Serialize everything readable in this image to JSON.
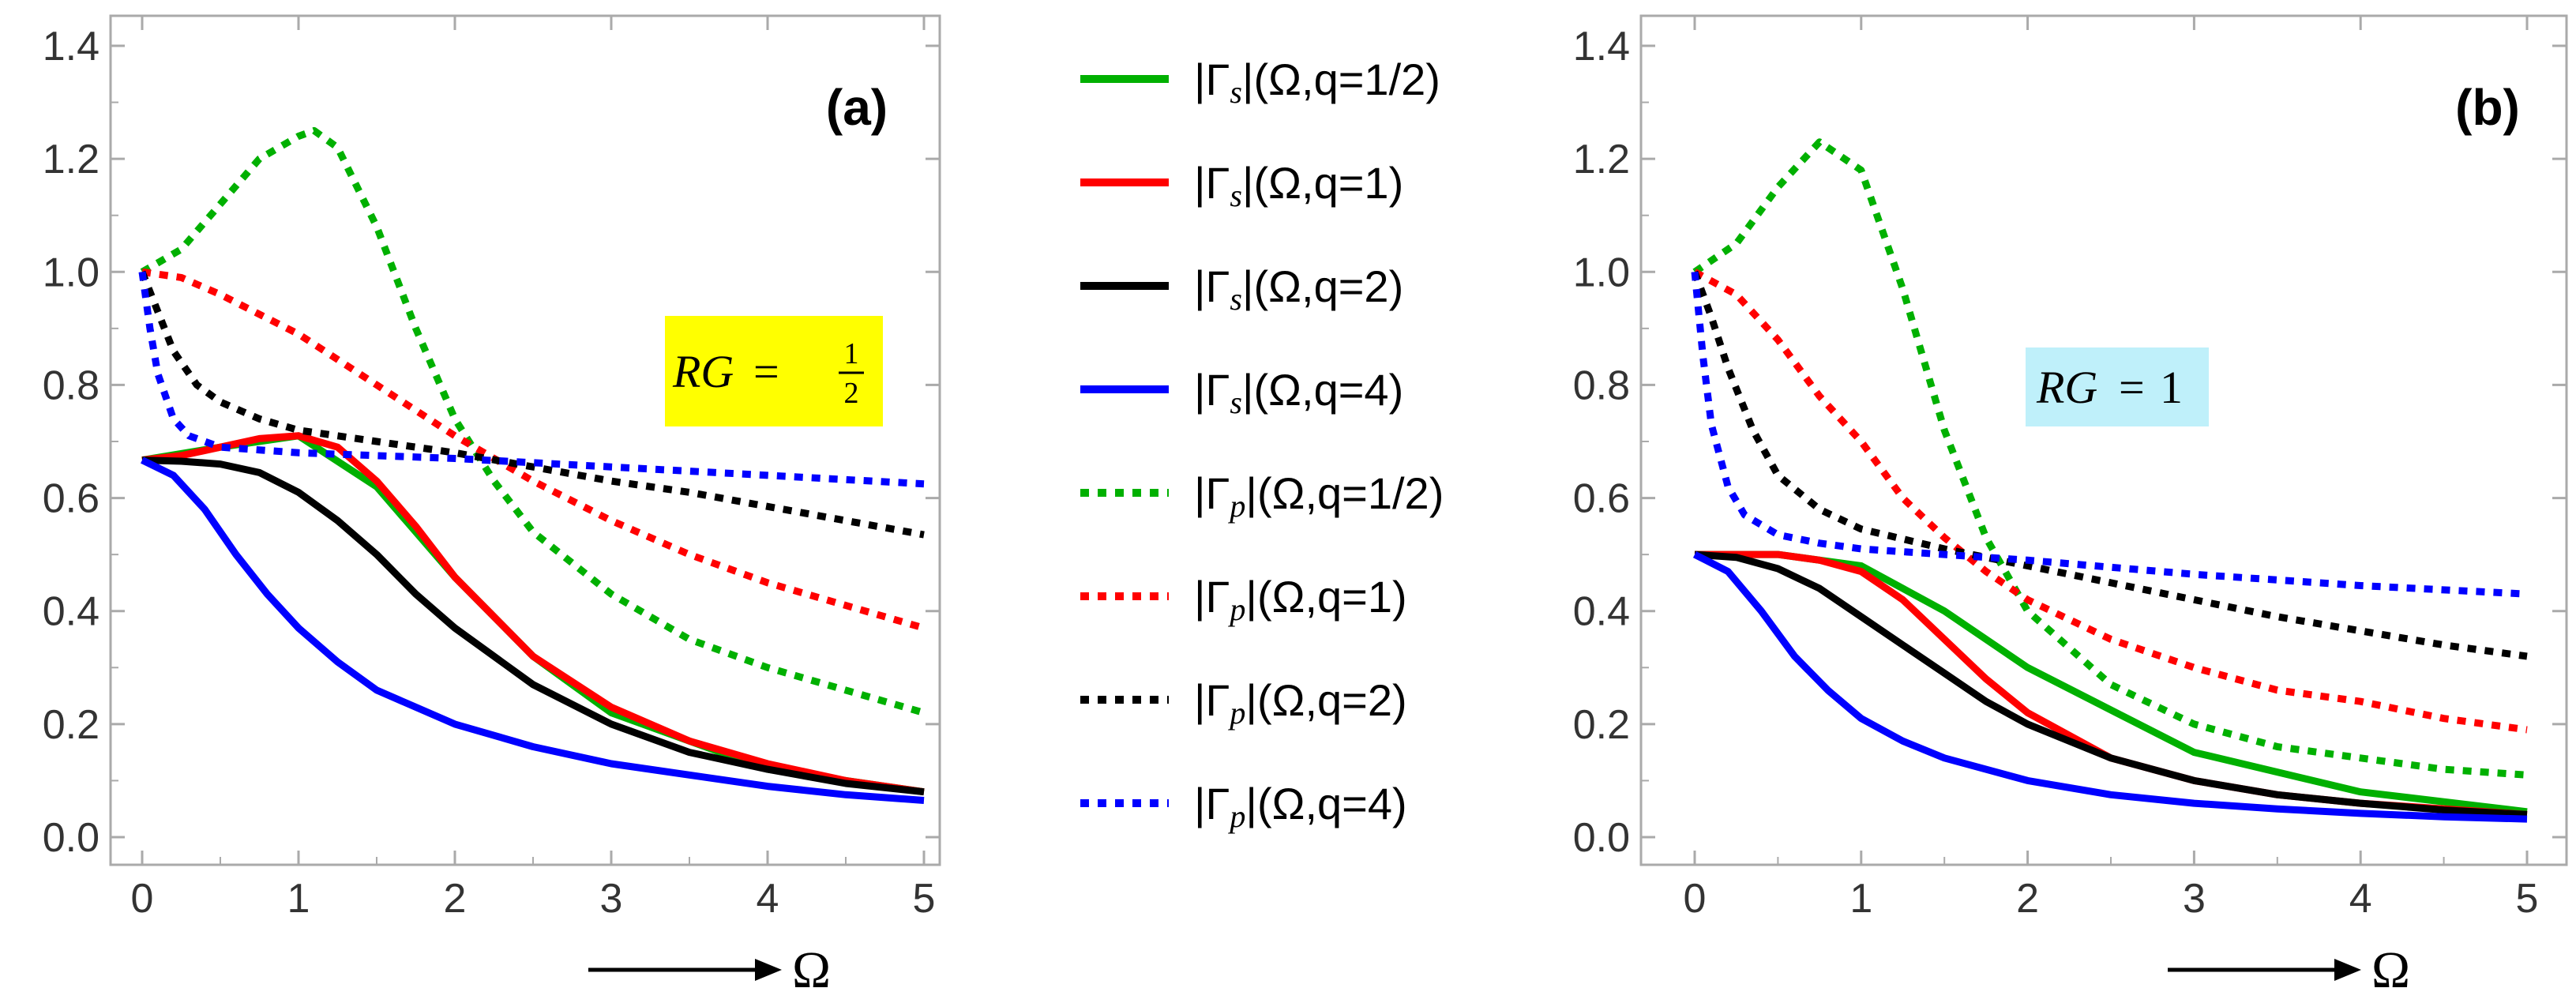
{
  "chart_data": [
    {
      "type": "line",
      "panel_label": "(a)",
      "annotation": {
        "text": "RG",
        "equals": "=",
        "numerator": "1",
        "denominator": "2",
        "background": "#ffff00"
      },
      "xlabel": "Ω",
      "xlim": [
        0,
        5
      ],
      "ylim": [
        0,
        1.4
      ],
      "xticks": [
        "0",
        "1",
        "2",
        "3",
        "4",
        "5"
      ],
      "yticks": [
        "0.0",
        "0.2",
        "0.4",
        "0.6",
        "0.8",
        "1.0",
        "1.2",
        "1.4"
      ],
      "series": [
        {
          "name": "|Γs|(Ω,q=1/2)",
          "color": "#00b000",
          "dash": false,
          "x": [
            0,
            0.5,
            1,
            1.5,
            2,
            2.5,
            3,
            4,
            5
          ],
          "y": [
            0.667,
            0.69,
            0.71,
            0.62,
            0.46,
            0.32,
            0.22,
            0.12,
            0.08
          ]
        },
        {
          "name": "|Γs|(Ω,q=1)",
          "color": "#ff0000",
          "dash": false,
          "x": [
            0,
            0.25,
            0.5,
            0.75,
            1,
            1.25,
            1.5,
            1.75,
            2,
            2.5,
            3,
            3.5,
            4,
            4.5,
            5
          ],
          "y": [
            0.667,
            0.675,
            0.69,
            0.705,
            0.71,
            0.69,
            0.63,
            0.55,
            0.46,
            0.32,
            0.23,
            0.17,
            0.13,
            0.1,
            0.08
          ]
        },
        {
          "name": "|Γs|(Ω,q=2)",
          "color": "#000000",
          "dash": false,
          "x": [
            0,
            0.25,
            0.5,
            0.75,
            1,
            1.25,
            1.5,
            1.75,
            2,
            2.5,
            3,
            3.5,
            4,
            4.5,
            5
          ],
          "y": [
            0.667,
            0.665,
            0.66,
            0.645,
            0.61,
            0.56,
            0.5,
            0.43,
            0.37,
            0.27,
            0.2,
            0.15,
            0.12,
            0.095,
            0.08
          ]
        },
        {
          "name": "|Γs|(Ω,q=4)",
          "color": "#0000ff",
          "dash": false,
          "x": [
            0,
            0.2,
            0.4,
            0.6,
            0.8,
            1,
            1.25,
            1.5,
            2,
            2.5,
            3,
            3.5,
            4,
            4.5,
            5
          ],
          "y": [
            0.667,
            0.64,
            0.58,
            0.5,
            0.43,
            0.37,
            0.31,
            0.26,
            0.2,
            0.16,
            0.13,
            0.11,
            0.09,
            0.075,
            0.065
          ]
        },
        {
          "name": "|Γp|(Ω,q=1/2)",
          "color": "#00b000",
          "dash": true,
          "x": [
            0,
            0.25,
            0.5,
            0.75,
            1,
            1.1,
            1.25,
            1.5,
            1.75,
            2,
            2.25,
            2.5,
            3,
            3.5,
            4,
            4.5,
            5
          ],
          "y": [
            1.0,
            1.04,
            1.12,
            1.2,
            1.24,
            1.25,
            1.22,
            1.08,
            0.9,
            0.74,
            0.63,
            0.54,
            0.43,
            0.35,
            0.3,
            0.26,
            0.22
          ]
        },
        {
          "name": "|Γp|(Ω,q=1)",
          "color": "#ff0000",
          "dash": true,
          "x": [
            0,
            0.25,
            0.5,
            1,
            1.5,
            2,
            2.5,
            3,
            3.5,
            4,
            4.5,
            5
          ],
          "y": [
            1.0,
            0.99,
            0.96,
            0.89,
            0.8,
            0.71,
            0.63,
            0.56,
            0.5,
            0.45,
            0.41,
            0.37
          ]
        },
        {
          "name": "|Γp|(Ω,q=2)",
          "color": "#000000",
          "dash": true,
          "x": [
            0,
            0.1,
            0.2,
            0.35,
            0.5,
            0.75,
            1,
            1.5,
            2,
            2.5,
            3,
            3.5,
            4,
            4.5,
            5
          ],
          "y": [
            1.0,
            0.93,
            0.86,
            0.8,
            0.77,
            0.74,
            0.72,
            0.7,
            0.68,
            0.655,
            0.63,
            0.61,
            0.585,
            0.56,
            0.535
          ]
        },
        {
          "name": "|Γp|(Ω,q=4)",
          "color": "#0000ff",
          "dash": true,
          "x": [
            0,
            0.05,
            0.1,
            0.2,
            0.3,
            0.5,
            0.75,
            1,
            2,
            3,
            4,
            5
          ],
          "y": [
            1.0,
            0.9,
            0.82,
            0.74,
            0.71,
            0.69,
            0.685,
            0.68,
            0.67,
            0.655,
            0.64,
            0.625
          ]
        }
      ]
    },
    {
      "type": "line",
      "panel_label": "(b)",
      "annotation": {
        "text": "RG",
        "equals": "=",
        "numerator": "1",
        "denominator": "",
        "background": "#bff0fa"
      },
      "xlabel": "Ω",
      "xlim": [
        0,
        5
      ],
      "ylim": [
        0,
        1.4
      ],
      "xticks": [
        "0",
        "1",
        "2",
        "3",
        "4",
        "5"
      ],
      "yticks": [
        "0.0",
        "0.2",
        "0.4",
        "0.6",
        "0.8",
        "1.0",
        "1.2",
        "1.4"
      ],
      "series": [
        {
          "name": "|Γs|(Ω,q=1/2)",
          "color": "#00b000",
          "dash": false,
          "x": [
            0,
            0.5,
            1,
            1.5,
            2,
            3,
            4,
            5
          ],
          "y": [
            0.5,
            0.5,
            0.48,
            0.4,
            0.3,
            0.15,
            0.08,
            0.045
          ]
        },
        {
          "name": "|Γs|(Ω,q=1)",
          "color": "#ff0000",
          "dash": false,
          "x": [
            0,
            0.25,
            0.5,
            0.75,
            1,
            1.25,
            1.5,
            1.75,
            2,
            2.5,
            3,
            3.5,
            4,
            4.5,
            5
          ],
          "y": [
            0.5,
            0.5,
            0.5,
            0.49,
            0.47,
            0.42,
            0.35,
            0.28,
            0.22,
            0.14,
            0.1,
            0.075,
            0.06,
            0.05,
            0.04
          ]
        },
        {
          "name": "|Γs|(Ω,q=2)",
          "color": "#000000",
          "dash": false,
          "x": [
            0,
            0.25,
            0.5,
            0.75,
            1,
            1.25,
            1.5,
            1.75,
            2,
            2.5,
            3,
            3.5,
            4,
            4.5,
            5
          ],
          "y": [
            0.5,
            0.495,
            0.475,
            0.44,
            0.39,
            0.34,
            0.29,
            0.24,
            0.2,
            0.14,
            0.1,
            0.075,
            0.06,
            0.048,
            0.04
          ]
        },
        {
          "name": "|Γs|(Ω,q=4)",
          "color": "#0000ff",
          "dash": false,
          "x": [
            0,
            0.2,
            0.4,
            0.6,
            0.8,
            1,
            1.25,
            1.5,
            2,
            2.5,
            3,
            3.5,
            4,
            4.5,
            5
          ],
          "y": [
            0.5,
            0.47,
            0.4,
            0.32,
            0.26,
            0.21,
            0.17,
            0.14,
            0.1,
            0.075,
            0.06,
            0.05,
            0.042,
            0.036,
            0.032
          ]
        },
        {
          "name": "|Γp|(Ω,q=1/2)",
          "color": "#00b000",
          "dash": true,
          "x": [
            0,
            0.25,
            0.5,
            0.75,
            1,
            1.25,
            1.5,
            1.75,
            2,
            2.5,
            3,
            3.5,
            4,
            4.5,
            5
          ],
          "y": [
            1.0,
            1.05,
            1.15,
            1.23,
            1.18,
            0.97,
            0.72,
            0.53,
            0.4,
            0.27,
            0.2,
            0.16,
            0.14,
            0.12,
            0.11
          ]
        },
        {
          "name": "|Γp|(Ω,q=1)",
          "color": "#ff0000",
          "dash": true,
          "x": [
            0,
            0.25,
            0.5,
            0.75,
            1,
            1.25,
            1.5,
            1.75,
            2,
            2.5,
            3,
            3.5,
            4,
            4.5,
            5
          ],
          "y": [
            1.0,
            0.96,
            0.88,
            0.78,
            0.7,
            0.6,
            0.53,
            0.47,
            0.42,
            0.35,
            0.3,
            0.26,
            0.24,
            0.21,
            0.19
          ]
        },
        {
          "name": "|Γp|(Ω,q=2)",
          "color": "#000000",
          "dash": true,
          "x": [
            0,
            0.1,
            0.2,
            0.35,
            0.5,
            0.75,
            1,
            1.5,
            2,
            2.5,
            3,
            3.5,
            4,
            4.5,
            5
          ],
          "y": [
            1.0,
            0.92,
            0.83,
            0.72,
            0.64,
            0.58,
            0.545,
            0.51,
            0.48,
            0.45,
            0.42,
            0.39,
            0.365,
            0.34,
            0.32
          ]
        },
        {
          "name": "|Γp|(Ω,q=4)",
          "color": "#0000ff",
          "dash": true,
          "x": [
            0,
            0.05,
            0.1,
            0.2,
            0.3,
            0.5,
            0.75,
            1,
            2,
            3,
            4,
            5
          ],
          "y": [
            1.0,
            0.85,
            0.73,
            0.62,
            0.57,
            0.535,
            0.52,
            0.51,
            0.49,
            0.465,
            0.445,
            0.43
          ]
        }
      ]
    }
  ],
  "legend": [
    {
      "prefix": "|Γ",
      "sub": "s",
      "suffix": "|(Ω,q=1/2)",
      "color": "#00b000",
      "dash": false
    },
    {
      "prefix": "|Γ",
      "sub": "s",
      "suffix": "|(Ω,q=1)",
      "color": "#ff0000",
      "dash": false
    },
    {
      "prefix": "|Γ",
      "sub": "s",
      "suffix": "|(Ω,q=2)",
      "color": "#000000",
      "dash": false
    },
    {
      "prefix": "|Γ",
      "sub": "s",
      "suffix": "|(Ω,q=4)",
      "color": "#0000ff",
      "dash": false
    },
    {
      "prefix": "|Γ",
      "sub": "p",
      "suffix": "|(Ω,q=1/2)",
      "color": "#00b000",
      "dash": true
    },
    {
      "prefix": "|Γ",
      "sub": "p",
      "suffix": "|(Ω,q=1)",
      "color": "#ff0000",
      "dash": true
    },
    {
      "prefix": "|Γ",
      "sub": "p",
      "suffix": "|(Ω,q=2)",
      "color": "#000000",
      "dash": true
    },
    {
      "prefix": "|Γ",
      "sub": "p",
      "suffix": "|(Ω,q=4)",
      "color": "#0000ff",
      "dash": true
    }
  ]
}
